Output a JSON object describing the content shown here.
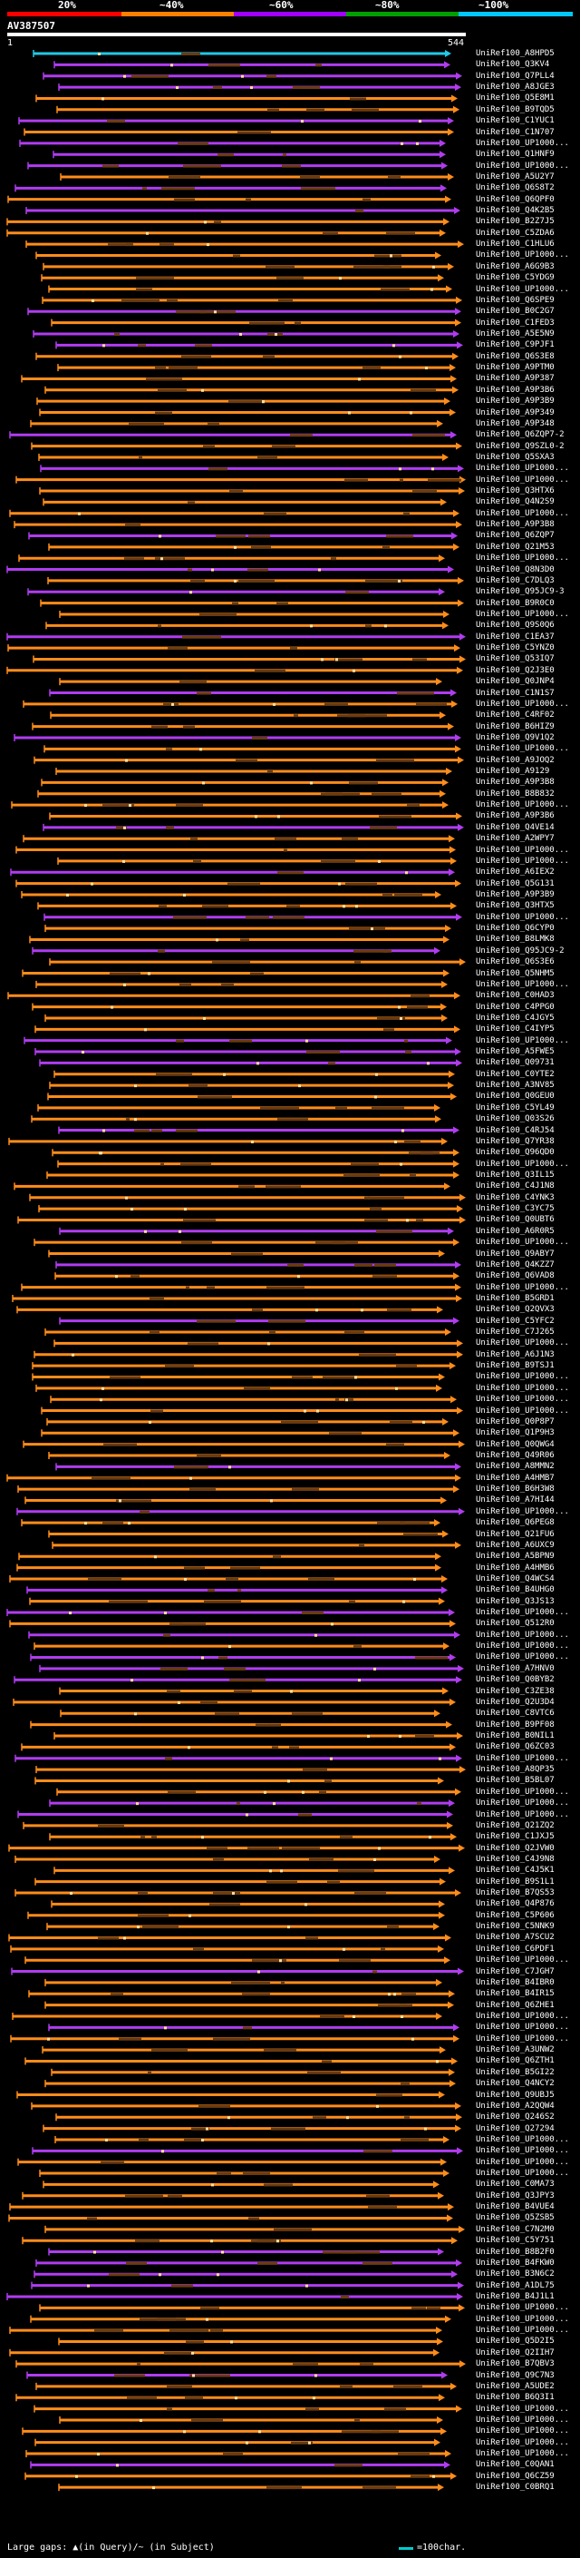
{
  "legend": {
    "labels": [
      "20%",
      "~40%",
      "~60%",
      "~80%",
      "~100%"
    ],
    "colors": [
      "#ff0000",
      "#ff8000",
      "#a000ff",
      "#00a000",
      "#00c8ff"
    ]
  },
  "query": {
    "title": "AV387507",
    "start": "1",
    "end": "544"
  },
  "hit_colors": {
    "orange": "#ff8c1a",
    "purple": "#b03cf0",
    "green": "#22cc22",
    "cyan": "#22c8e6",
    "dark": "#6a3a10",
    "pale": "#ffe0a0"
  },
  "hits": [
    {
      "label": "UniRef100_A8HPD5",
      "c": "cyan"
    },
    {
      "label": "UniRef100_Q3KV4",
      "c": "purple"
    },
    {
      "label": "UniRef100_Q7PLL4",
      "c": "purple"
    },
    {
      "label": "UniRef100_A8JGE3",
      "c": "purple"
    },
    {
      "label": "UniRef100_Q5E8M1",
      "c": "orange"
    },
    {
      "label": "UniRef100_B9TQD5",
      "c": "orange"
    },
    {
      "label": "UniRef100_C1YUC1",
      "c": "purple"
    },
    {
      "label": "UniRef100_C1N707",
      "c": "orange"
    },
    {
      "label": "UniRef100_UP1000...",
      "c": "purple"
    },
    {
      "label": "UniRef100_Q1HNF9",
      "c": "purple"
    },
    {
      "label": "UniRef100_UP1000...",
      "c": "purple"
    },
    {
      "label": "UniRef100_A5U2Y7",
      "c": "orange"
    },
    {
      "label": "UniRef100_Q6S8T2",
      "c": "purple"
    },
    {
      "label": "UniRef100_Q6QPF0",
      "c": "orange"
    },
    {
      "label": "UniRef100_Q4K2B5",
      "c": "purple"
    },
    {
      "label": "UniRef100_B2Z7J5",
      "c": "orange"
    },
    {
      "label": "UniRef100_C5ZDA6",
      "c": "orange"
    },
    {
      "label": "UniRef100_C1HLU6",
      "c": "orange"
    },
    {
      "label": "UniRef100_UP1000...",
      "c": "orange"
    },
    {
      "label": "UniRef100_A6G9B3",
      "c": "orange"
    },
    {
      "label": "UniRef100_C5YDG9",
      "c": "orange"
    },
    {
      "label": "UniRef100_UP1000...",
      "c": "orange"
    },
    {
      "label": "UniRef100_Q6SPE9",
      "c": "orange"
    },
    {
      "label": "UniRef100_B0C2G7",
      "c": "purple"
    },
    {
      "label": "UniRef100_C1FED3",
      "c": "orange"
    },
    {
      "label": "UniRef100_A5E5N9",
      "c": "purple"
    },
    {
      "label": "UniRef100_C9PJF1",
      "c": "purple"
    },
    {
      "label": "UniRef100_Q6S3E8",
      "c": "orange"
    },
    {
      "label": "UniRef100_A9PTM0",
      "c": "orange"
    },
    {
      "label": "UniRef100_A9P387",
      "c": "orange"
    },
    {
      "label": "UniRef100_A9P3B6",
      "c": "orange"
    },
    {
      "label": "UniRef100_A9P3B9",
      "c": "orange"
    },
    {
      "label": "UniRef100_A9P349",
      "c": "orange"
    },
    {
      "label": "UniRef100_A9P348",
      "c": "orange"
    },
    {
      "label": "UniRef100_Q6ZQP7-2",
      "c": "purple"
    },
    {
      "label": "UniRef100_Q9SZL0-2",
      "c": "orange"
    },
    {
      "label": "UniRef100_Q5SXA3",
      "c": "orange"
    },
    {
      "label": "UniRef100_UP1000...",
      "c": "purple"
    },
    {
      "label": "UniRef100_UP1000...",
      "c": "orange"
    },
    {
      "label": "UniRef100_Q3HTX6",
      "c": "orange"
    },
    {
      "label": "UniRef100_Q4N2S9",
      "c": "orange"
    },
    {
      "label": "UniRef100_UP1000...",
      "c": "orange"
    },
    {
      "label": "UniRef100_A9P3B8",
      "c": "orange"
    },
    {
      "label": "UniRef100_Q6ZQP7",
      "c": "purple"
    },
    {
      "label": "UniRef100_Q21M53",
      "c": "orange"
    },
    {
      "label": "UniRef100_UP1000...",
      "c": "orange"
    },
    {
      "label": "UniRef100_Q8N3D0",
      "c": "purple"
    },
    {
      "label": "UniRef100_C7DLQ3",
      "c": "orange"
    },
    {
      "label": "UniRef100_Q95JC9-3",
      "c": "purple"
    },
    {
      "label": "UniRef100_B9R0C0",
      "c": "orange"
    },
    {
      "label": "UniRef100_UP1000...",
      "c": "orange"
    },
    {
      "label": "UniRef100_Q9S0Q6",
      "c": "orange"
    },
    {
      "label": "UniRef100_C1EA37",
      "c": "purple"
    },
    {
      "label": "UniRef100_C5YNZ0",
      "c": "orange"
    },
    {
      "label": "UniRef100_Q53IQ7",
      "c": "orange"
    },
    {
      "label": "UniRef100_Q2J3E0",
      "c": "orange"
    },
    {
      "label": "UniRef100_Q0JNP4",
      "c": "orange"
    },
    {
      "label": "UniRef100_C1N1S7",
      "c": "purple"
    },
    {
      "label": "UniRef100_UP1000...",
      "c": "orange"
    },
    {
      "label": "UniRef100_C4RF02",
      "c": "orange"
    },
    {
      "label": "UniRef100_B6HIZ9",
      "c": "orange"
    },
    {
      "label": "UniRef100_Q9V1Q2",
      "c": "purple"
    },
    {
      "label": "UniRef100_UP1000...",
      "c": "orange"
    },
    {
      "label": "UniRef100_A9JOQ2",
      "c": "orange"
    },
    {
      "label": "UniRef100_A9129",
      "c": "orange"
    },
    {
      "label": "UniRef100_A9P3B8",
      "c": "orange"
    },
    {
      "label": "UniRef100_B8B832",
      "c": "orange"
    },
    {
      "label": "UniRef100_UP1000...",
      "c": "orange"
    },
    {
      "label": "UniRef100_A9P3B6",
      "c": "orange"
    },
    {
      "label": "UniRef100_Q4VE14",
      "c": "purple"
    },
    {
      "label": "UniRef100_A2WPY7",
      "c": "orange"
    },
    {
      "label": "UniRef100_UP1000...",
      "c": "orange"
    },
    {
      "label": "UniRef100_UP1000...",
      "c": "orange"
    },
    {
      "label": "UniRef100_A6IEX2",
      "c": "purple"
    },
    {
      "label": "UniRef100_Q5G131",
      "c": "orange"
    },
    {
      "label": "UniRef100_A9P3B9",
      "c": "orange"
    },
    {
      "label": "UniRef100_Q3HTX5",
      "c": "orange"
    },
    {
      "label": "UniRef100_UP1000...",
      "c": "purple"
    },
    {
      "label": "UniRef100_Q6CYP0",
      "c": "orange"
    },
    {
      "label": "UniRef100_B8LMK8",
      "c": "orange"
    },
    {
      "label": "UniRef100_Q95JC9-2",
      "c": "purple"
    },
    {
      "label": "UniRef100_Q6S3E6",
      "c": "orange"
    },
    {
      "label": "UniRef100_Q5NHM5",
      "c": "orange"
    },
    {
      "label": "UniRef100_UP1000...",
      "c": "orange"
    },
    {
      "label": "UniRef100_C0HAD3",
      "c": "orange"
    },
    {
      "label": "UniRef100_C4PPG0",
      "c": "orange"
    },
    {
      "label": "UniRef100_C4JGY5",
      "c": "orange"
    },
    {
      "label": "UniRef100_C4IYP5",
      "c": "orange"
    },
    {
      "label": "UniRef100_UP1000...",
      "c": "purple"
    },
    {
      "label": "UniRef100_A5FWE5",
      "c": "purple"
    },
    {
      "label": "UniRef100_Q09731",
      "c": "purple"
    },
    {
      "label": "UniRef100_C0YTE2",
      "c": "orange"
    },
    {
      "label": "UniRef100_A3NV85",
      "c": "orange"
    },
    {
      "label": "UniRef100_Q0GEU0",
      "c": "orange"
    },
    {
      "label": "UniRef100_C5YL49",
      "c": "orange"
    },
    {
      "label": "UniRef100_Q03S26",
      "c": "orange"
    },
    {
      "label": "UniRef100_C4RJ54",
      "c": "purple"
    },
    {
      "label": "UniRef100_Q7YR38",
      "c": "orange"
    },
    {
      "label": "UniRef100_Q96QD0",
      "c": "orange"
    },
    {
      "label": "UniRef100_UP1000...",
      "c": "orange"
    },
    {
      "label": "UniRef100_Q3IL15",
      "c": "orange"
    },
    {
      "label": "UniRef100_C4J1N8",
      "c": "orange"
    },
    {
      "label": "UniRef100_C4YNK3",
      "c": "orange"
    },
    {
      "label": "UniRef100_C3YC75",
      "c": "orange"
    },
    {
      "label": "UniRef100_Q0UBT6",
      "c": "orange"
    },
    {
      "label": "UniRef100_A6R0R5",
      "c": "purple"
    },
    {
      "label": "UniRef100_UP1000...",
      "c": "orange"
    },
    {
      "label": "UniRef100_Q9ABY7",
      "c": "orange"
    },
    {
      "label": "UniRef100_Q4KZZ7",
      "c": "purple"
    },
    {
      "label": "UniRef100_Q6VAD8",
      "c": "orange"
    },
    {
      "label": "UniRef100_UP1000...",
      "c": "orange"
    },
    {
      "label": "UniRef100_B5GRD1",
      "c": "orange"
    },
    {
      "label": "UniRef100_Q2QVX3",
      "c": "orange"
    },
    {
      "label": "UniRef100_C5YFC2",
      "c": "purple"
    },
    {
      "label": "UniRef100_C7J265",
      "c": "orange"
    },
    {
      "label": "UniRef100_UP1000...",
      "c": "orange"
    },
    {
      "label": "UniRef100_A6J1N3",
      "c": "orange"
    },
    {
      "label": "UniRef100_B9TSJ1",
      "c": "orange"
    },
    {
      "label": "UniRef100_UP1000...",
      "c": "orange"
    },
    {
      "label": "UniRef100_UP1000...",
      "c": "orange"
    },
    {
      "label": "UniRef100_UP1000...",
      "c": "orange"
    },
    {
      "label": "UniRef100_UP1000...",
      "c": "orange"
    },
    {
      "label": "UniRef100_Q0P8P7",
      "c": "orange"
    },
    {
      "label": "UniRef100_Q1P9H3",
      "c": "orange"
    },
    {
      "label": "UniRef100_Q0QWG4",
      "c": "orange"
    },
    {
      "label": "UniRef100_Q49R06",
      "c": "orange"
    },
    {
      "label": "UniRef100_A8MMN2",
      "c": "purple"
    },
    {
      "label": "UniRef100_A4HMB7",
      "c": "orange"
    },
    {
      "label": "UniRef100_B6H3W8",
      "c": "orange"
    },
    {
      "label": "UniRef100_A7HI44",
      "c": "orange"
    },
    {
      "label": "UniRef100_UP1000...",
      "c": "purple"
    },
    {
      "label": "UniRef100_Q6PEG8",
      "c": "orange"
    },
    {
      "label": "UniRef100_Q21FU6",
      "c": "orange"
    },
    {
      "label": "UniRef100_A6UXC9",
      "c": "orange"
    },
    {
      "label": "UniRef100_A5BPN9",
      "c": "orange"
    },
    {
      "label": "UniRef100_A4HMB6",
      "c": "orange"
    },
    {
      "label": "UniRef100_Q4WCS4",
      "c": "orange"
    },
    {
      "label": "UniRef100_B4UHG0",
      "c": "purple"
    },
    {
      "label": "UniRef100_Q3JS13",
      "c": "orange"
    },
    {
      "label": "UniRef100_UP1000...",
      "c": "purple"
    },
    {
      "label": "UniRef100_Q512R0",
      "c": "orange"
    },
    {
      "label": "UniRef100_UP1000...",
      "c": "purple"
    },
    {
      "label": "UniRef100_UP1000...",
      "c": "orange"
    },
    {
      "label": "UniRef100_UP1000...",
      "c": "purple"
    },
    {
      "label": "UniRef100_A7HNV0",
      "c": "purple"
    },
    {
      "label": "UniRef100_Q0BYB2",
      "c": "purple"
    },
    {
      "label": "UniRef100_C3ZE38",
      "c": "orange"
    },
    {
      "label": "UniRef100_Q2U3D4",
      "c": "orange"
    },
    {
      "label": "UniRef100_C8VTC6",
      "c": "orange"
    },
    {
      "label": "UniRef100_B9PF08",
      "c": "orange"
    },
    {
      "label": "UniRef100_B0NIL1",
      "c": "orange"
    },
    {
      "label": "UniRef100_Q6ZC03",
      "c": "orange"
    },
    {
      "label": "UniRef100_UP1000...",
      "c": "purple"
    },
    {
      "label": "UniRef100_A8QP35",
      "c": "orange"
    },
    {
      "label": "UniRef100_B5BL07",
      "c": "orange"
    },
    {
      "label": "UniRef100_UP1000...",
      "c": "orange"
    },
    {
      "label": "UniRef100_UP1000...",
      "c": "purple"
    },
    {
      "label": "UniRef100_UP1000...",
      "c": "purple"
    },
    {
      "label": "UniRef100_Q21ZQ2",
      "c": "orange"
    },
    {
      "label": "UniRef100_C1JXJ5",
      "c": "orange"
    },
    {
      "label": "UniRef100_Q2JVW0",
      "c": "orange"
    },
    {
      "label": "UniRef100_C4J9N8",
      "c": "orange"
    },
    {
      "label": "UniRef100_C4J5K1",
      "c": "orange"
    },
    {
      "label": "UniRef100_B9S1L1",
      "c": "orange"
    },
    {
      "label": "UniRef100_B7QS53",
      "c": "orange"
    },
    {
      "label": "UniRef100_Q4P876",
      "c": "orange"
    },
    {
      "label": "UniRef100_C5P606",
      "c": "orange"
    },
    {
      "label": "UniRef100_C5NNK9",
      "c": "orange"
    },
    {
      "label": "UniRef100_A7SCU2",
      "c": "orange"
    },
    {
      "label": "UniRef100_C6PDF1",
      "c": "orange"
    },
    {
      "label": "UniRef100_UP1000...",
      "c": "orange"
    },
    {
      "label": "UniRef100_C7JGH7",
      "c": "purple"
    },
    {
      "label": "UniRef100_B4IBR0",
      "c": "orange"
    },
    {
      "label": "UniRef100_B4IR15",
      "c": "orange"
    },
    {
      "label": "UniRef100_Q6ZHE1",
      "c": "orange"
    },
    {
      "label": "UniRef100_UP1000...",
      "c": "orange"
    },
    {
      "label": "UniRef100_UP1000...",
      "c": "purple"
    },
    {
      "label": "UniRef100_UP1000...",
      "c": "orange"
    },
    {
      "label": "UniRef100_A3UNW2",
      "c": "orange"
    },
    {
      "label": "UniRef100_Q6ZTH1",
      "c": "orange"
    },
    {
      "label": "UniRef100_B5GI22",
      "c": "orange"
    },
    {
      "label": "UniRef100_Q4NCY2",
      "c": "orange"
    },
    {
      "label": "UniRef100_Q9UBJ5",
      "c": "orange"
    },
    {
      "label": "UniRef100_A2QQW4",
      "c": "orange"
    },
    {
      "label": "UniRef100_Q246S2",
      "c": "orange"
    },
    {
      "label": "UniRef100_Q27294",
      "c": "orange"
    },
    {
      "label": "UniRef100_UP1000...",
      "c": "orange"
    },
    {
      "label": "UniRef100_UP1000...",
      "c": "purple"
    },
    {
      "label": "UniRef100_UP1000...",
      "c": "orange"
    },
    {
      "label": "UniRef100_UP1000...",
      "c": "orange"
    },
    {
      "label": "UniRef100_C0MA73",
      "c": "orange"
    },
    {
      "label": "UniRef100_Q3JPY3",
      "c": "orange"
    },
    {
      "label": "UniRef100_B4VUE4",
      "c": "orange"
    },
    {
      "label": "UniRef100_Q5ZSB5",
      "c": "orange"
    },
    {
      "label": "UniRef100_C7N2M0",
      "c": "orange"
    },
    {
      "label": "UniRef100_C5Y751",
      "c": "orange"
    },
    {
      "label": "UniRef100_B8B2F0",
      "c": "purple"
    },
    {
      "label": "UniRef100_B4FKW0",
      "c": "purple"
    },
    {
      "label": "UniRef100_B3N6C2",
      "c": "purple"
    },
    {
      "label": "UniRef100_A1DL75",
      "c": "purple"
    },
    {
      "label": "UniRef100_B4J1L1",
      "c": "purple"
    },
    {
      "label": "UniRef100_UP1000...",
      "c": "orange"
    },
    {
      "label": "UniRef100_UP1000...",
      "c": "orange"
    },
    {
      "label": "UniRef100_UP1000...",
      "c": "orange"
    },
    {
      "label": "UniRef100_Q5D2I5",
      "c": "orange"
    },
    {
      "label": "UniRef100_Q2IIH7",
      "c": "orange"
    },
    {
      "label": "UniRef100_B7QBV3",
      "c": "orange"
    },
    {
      "label": "UniRef100_Q9C7N3",
      "c": "purple"
    },
    {
      "label": "UniRef100_A5UDE2",
      "c": "orange"
    },
    {
      "label": "UniRef100_B6Q3I1",
      "c": "orange"
    },
    {
      "label": "UniRef100_UP1000...",
      "c": "orange"
    },
    {
      "label": "UniRef100_UP1000...",
      "c": "orange"
    },
    {
      "label": "UniRef100_UP1000...",
      "c": "orange"
    },
    {
      "label": "UniRef100_UP1000...",
      "c": "orange"
    },
    {
      "label": "UniRef100_UP1000...",
      "c": "orange"
    },
    {
      "label": "UniRef100_C0QAN1",
      "c": "purple"
    },
    {
      "label": "UniRef100_Q6CZ59",
      "c": "orange"
    },
    {
      "label": "UniRef100_C0BRQ1",
      "c": "orange"
    }
  ],
  "footer": {
    "text": "Large gaps: ▲(in Query)/~ (in Subject)",
    "scale": "=100char."
  }
}
